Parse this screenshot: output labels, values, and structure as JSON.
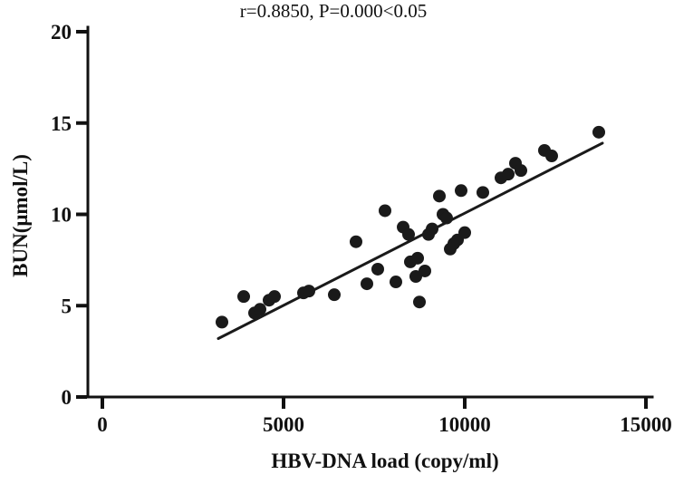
{
  "chart_data": {
    "type": "scatter",
    "title": "r=0.8850, P=0.000<0.05",
    "xlabel": "HBV-DNA load (copy/ml)",
    "ylabel": "BUN(μmol/L)",
    "xlim": [
      0,
      15000
    ],
    "ylim": [
      0,
      20
    ],
    "x_ticks": [
      0,
      5000,
      10000,
      15000
    ],
    "y_ticks": [
      0,
      5,
      10,
      15,
      20
    ],
    "grid": false,
    "legend": "none",
    "point_color": "#1a1a1a",
    "line_color": "#1a1a1a",
    "trend_line": {
      "x1": 3200,
      "y1": 3.2,
      "x2": 13800,
      "y2": 13.9
    },
    "points": [
      [
        3300,
        4.1
      ],
      [
        3900,
        5.5
      ],
      [
        4200,
        4.6
      ],
      [
        4350,
        4.8
      ],
      [
        4600,
        5.3
      ],
      [
        4750,
        5.5
      ],
      [
        5550,
        5.7
      ],
      [
        5700,
        5.8
      ],
      [
        6400,
        5.6
      ],
      [
        7000,
        8.5
      ],
      [
        7300,
        6.2
      ],
      [
        7600,
        7.0
      ],
      [
        7800,
        10.2
      ],
      [
        8100,
        6.3
      ],
      [
        8300,
        9.3
      ],
      [
        8450,
        8.9
      ],
      [
        8500,
        7.4
      ],
      [
        8650,
        6.6
      ],
      [
        8700,
        7.6
      ],
      [
        8750,
        5.2
      ],
      [
        8900,
        6.9
      ],
      [
        9000,
        8.9
      ],
      [
        9100,
        9.2
      ],
      [
        9300,
        11.0
      ],
      [
        9400,
        10.0
      ],
      [
        9500,
        9.8
      ],
      [
        9600,
        8.1
      ],
      [
        9700,
        8.4
      ],
      [
        9800,
        8.6
      ],
      [
        9900,
        11.3
      ],
      [
        10000,
        9.0
      ],
      [
        10500,
        11.2
      ],
      [
        11000,
        12.0
      ],
      [
        11200,
        12.2
      ],
      [
        11400,
        12.8
      ],
      [
        11550,
        12.4
      ],
      [
        12200,
        13.5
      ],
      [
        12400,
        13.2
      ],
      [
        13700,
        14.5
      ]
    ]
  }
}
